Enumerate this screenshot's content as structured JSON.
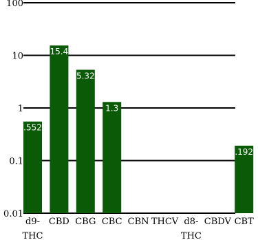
{
  "chart_data": {
    "type": "bar",
    "yscale": "log",
    "ylim": [
      0.01,
      100
    ],
    "yticks": [
      {
        "value": 100,
        "label": "100"
      },
      {
        "value": 10,
        "label": "10"
      },
      {
        "value": 1,
        "label": "1"
      },
      {
        "value": 0.1,
        "label": "0.1"
      },
      {
        "value": 0.01,
        "label": "0.01"
      }
    ],
    "grid": true,
    "categories": [
      [
        "d9-",
        "THC"
      ],
      [
        "CBD"
      ],
      [
        "CBG"
      ],
      [
        "CBC"
      ],
      [
        "CBN"
      ],
      [
        "THCV"
      ],
      [
        "d8-",
        "THC"
      ],
      [
        "CBDV"
      ],
      [
        "CBT"
      ]
    ],
    "values": [
      0.552,
      15.4,
      5.32,
      1.3,
      null,
      null,
      null,
      null,
      0.192
    ],
    "data_labels": [
      ".552",
      "15.4",
      "5.32",
      "1.3",
      "",
      "",
      "",
      "",
      ".192"
    ],
    "bar_color": "#0b5a08"
  }
}
